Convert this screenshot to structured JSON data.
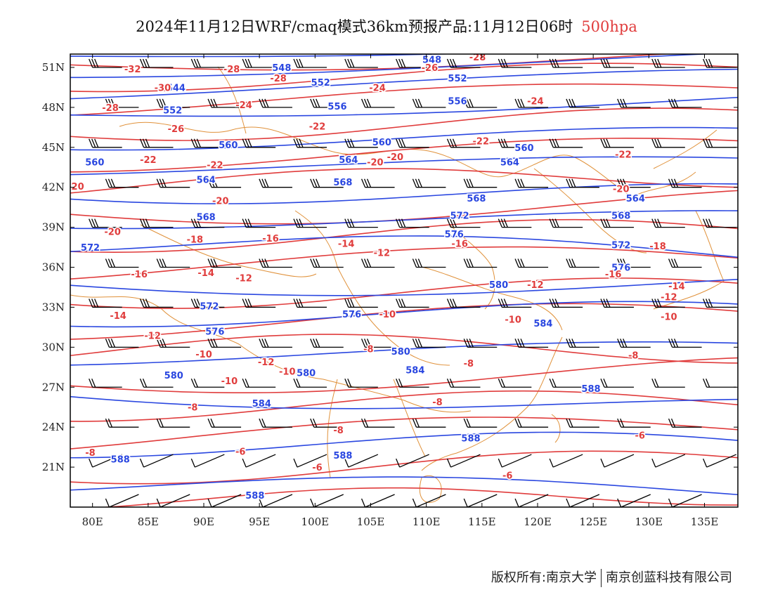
{
  "title": {
    "main": "2024年11月12日WRF/cmaq模式36km预报产品:11月12日06时",
    "level": "500hpa"
  },
  "colors": {
    "height_contour": "#2a47e0",
    "temperature_contour": "#e03c3c",
    "borders": "#e0913a",
    "wind_barb": "#000000"
  },
  "map": {
    "lon_range": [
      78,
      138
    ],
    "lat_range": [
      18,
      52
    ],
    "lat_ticks": [
      "51N",
      "48N",
      "45N",
      "42N",
      "39N",
      "36N",
      "33N",
      "30N",
      "27N",
      "24N",
      "21N"
    ],
    "lon_ticks": [
      "80E",
      "85E",
      "90E",
      "95E",
      "100E",
      "105E",
      "110E",
      "115E",
      "120E",
      "125E",
      "130E",
      "135E"
    ]
  },
  "height_labels": [
    {
      "text": "548",
      "lon": 110.5,
      "lat": 51.6
    },
    {
      "text": "544",
      "lon": 87.5,
      "lat": 49.5
    },
    {
      "text": "548",
      "lon": 97.0,
      "lat": 51.0
    },
    {
      "text": "552",
      "lon": 100.5,
      "lat": 49.9
    },
    {
      "text": "552",
      "lon": 112.8,
      "lat": 50.2
    },
    {
      "text": "552",
      "lon": 87.2,
      "lat": 47.8
    },
    {
      "text": "556",
      "lon": 102.0,
      "lat": 48.1
    },
    {
      "text": "556",
      "lon": 112.8,
      "lat": 48.5
    },
    {
      "text": "560",
      "lon": 80.2,
      "lat": 43.9
    },
    {
      "text": "560",
      "lon": 92.2,
      "lat": 45.2
    },
    {
      "text": "560",
      "lon": 106.0,
      "lat": 45.4
    },
    {
      "text": "560",
      "lon": 118.8,
      "lat": 45.0
    },
    {
      "text": "564",
      "lon": 90.2,
      "lat": 42.6
    },
    {
      "text": "564",
      "lon": 103.0,
      "lat": 44.1
    },
    {
      "text": "564",
      "lon": 117.5,
      "lat": 43.9
    },
    {
      "text": "568",
      "lon": 102.5,
      "lat": 42.4
    },
    {
      "text": "568",
      "lon": 114.5,
      "lat": 41.2
    },
    {
      "text": "564",
      "lon": 128.8,
      "lat": 41.2
    },
    {
      "text": "568",
      "lon": 90.2,
      "lat": 39.8
    },
    {
      "text": "568",
      "lon": 127.5,
      "lat": 39.9
    },
    {
      "text": "572",
      "lon": 113.0,
      "lat": 39.9
    },
    {
      "text": "576",
      "lon": 112.5,
      "lat": 38.5
    },
    {
      "text": "572",
      "lon": 79.8,
      "lat": 37.5
    },
    {
      "text": "572",
      "lon": 127.5,
      "lat": 37.7
    },
    {
      "text": "576",
      "lon": 127.5,
      "lat": 36.0
    },
    {
      "text": "572",
      "lon": 90.5,
      "lat": 33.1
    },
    {
      "text": "576",
      "lon": 103.3,
      "lat": 32.5
    },
    {
      "text": "580",
      "lon": 116.5,
      "lat": 34.7
    },
    {
      "text": "576",
      "lon": 91.0,
      "lat": 31.2
    },
    {
      "text": "584",
      "lon": 120.5,
      "lat": 31.8
    },
    {
      "text": "580",
      "lon": 107.7,
      "lat": 29.7
    },
    {
      "text": "580",
      "lon": 87.3,
      "lat": 27.9
    },
    {
      "text": "580",
      "lon": 99.2,
      "lat": 28.1
    },
    {
      "text": "584",
      "lon": 109.0,
      "lat": 28.3
    },
    {
      "text": "588",
      "lon": 124.8,
      "lat": 26.9
    },
    {
      "text": "584",
      "lon": 95.2,
      "lat": 25.8
    },
    {
      "text": "588",
      "lon": 114.0,
      "lat": 23.2
    },
    {
      "text": "588",
      "lon": 82.5,
      "lat": 21.6
    },
    {
      "text": "588",
      "lon": 102.5,
      "lat": 21.9
    },
    {
      "text": "588",
      "lon": 94.6,
      "lat": 18.9
    }
  ],
  "temp_labels": [
    {
      "text": "-28",
      "lon": 114.6,
      "lat": 51.8
    },
    {
      "text": "-32",
      "lon": 83.6,
      "lat": 50.9
    },
    {
      "text": "-28",
      "lon": 92.5,
      "lat": 50.9
    },
    {
      "text": "-28",
      "lon": 96.7,
      "lat": 50.2
    },
    {
      "text": "-26",
      "lon": 110.3,
      "lat": 51.0
    },
    {
      "text": "-30",
      "lon": 86.3,
      "lat": 49.5
    },
    {
      "text": "-24",
      "lon": 105.6,
      "lat": 49.5
    },
    {
      "text": "-28",
      "lon": 81.6,
      "lat": 48.0
    },
    {
      "text": "-24",
      "lon": 93.6,
      "lat": 48.2
    },
    {
      "text": "-24",
      "lon": 119.8,
      "lat": 48.5
    },
    {
      "text": "-26",
      "lon": 87.5,
      "lat": 46.4
    },
    {
      "text": "-22",
      "lon": 100.2,
      "lat": 46.6
    },
    {
      "text": "-22",
      "lon": 114.9,
      "lat": 45.5
    },
    {
      "text": "-22",
      "lon": 85.0,
      "lat": 44.1
    },
    {
      "text": "-22",
      "lon": 91.0,
      "lat": 43.7
    },
    {
      "text": "-20",
      "lon": 107.2,
      "lat": 44.3
    },
    {
      "text": "-22",
      "lon": 127.7,
      "lat": 44.5
    },
    {
      "text": "-20",
      "lon": 105.4,
      "lat": 43.9
    },
    {
      "text": "-20",
      "lon": 127.5,
      "lat": 41.9
    },
    {
      "text": "-20",
      "lon": 78.5,
      "lat": 42.1
    },
    {
      "text": "-20",
      "lon": 91.5,
      "lat": 41.0
    },
    {
      "text": "-20",
      "lon": 81.8,
      "lat": 38.7
    },
    {
      "text": "-18",
      "lon": 89.2,
      "lat": 38.1
    },
    {
      "text": "-16",
      "lon": 96.0,
      "lat": 38.2
    },
    {
      "text": "-14",
      "lon": 102.8,
      "lat": 37.8
    },
    {
      "text": "-12",
      "lon": 106.0,
      "lat": 37.1
    },
    {
      "text": "-16",
      "lon": 113.0,
      "lat": 37.8
    },
    {
      "text": "-18",
      "lon": 130.8,
      "lat": 37.6
    },
    {
      "text": "-16",
      "lon": 84.2,
      "lat": 35.5
    },
    {
      "text": "-14",
      "lon": 90.2,
      "lat": 35.6
    },
    {
      "text": "-12",
      "lon": 93.6,
      "lat": 35.2
    },
    {
      "text": "-16",
      "lon": 126.8,
      "lat": 35.5
    },
    {
      "text": "-12",
      "lon": 119.8,
      "lat": 34.7
    },
    {
      "text": "-14",
      "lon": 132.5,
      "lat": 34.6
    },
    {
      "text": "-12",
      "lon": 131.8,
      "lat": 33.8
    },
    {
      "text": "-14",
      "lon": 82.3,
      "lat": 32.4
    },
    {
      "text": "-10",
      "lon": 106.5,
      "lat": 32.5
    },
    {
      "text": "-10",
      "lon": 117.8,
      "lat": 32.1
    },
    {
      "text": "-10",
      "lon": 131.8,
      "lat": 32.3
    },
    {
      "text": "-12",
      "lon": 85.4,
      "lat": 30.9
    },
    {
      "text": "-10",
      "lon": 90.0,
      "lat": 29.5
    },
    {
      "text": "-8",
      "lon": 104.8,
      "lat": 29.9
    },
    {
      "text": "-8",
      "lon": 128.6,
      "lat": 29.4
    },
    {
      "text": "-12",
      "lon": 95.6,
      "lat": 28.9
    },
    {
      "text": "-8",
      "lon": 113.8,
      "lat": 28.8
    },
    {
      "text": "-10",
      "lon": 97.5,
      "lat": 28.2
    },
    {
      "text": "-10",
      "lon": 92.3,
      "lat": 27.5
    },
    {
      "text": "-8",
      "lon": 111.0,
      "lat": 25.9
    },
    {
      "text": "-8",
      "lon": 89.0,
      "lat": 25.5
    },
    {
      "text": "-8",
      "lon": 102.1,
      "lat": 23.8
    },
    {
      "text": "-8",
      "lon": 79.8,
      "lat": 22.1
    },
    {
      "text": "-6",
      "lon": 93.3,
      "lat": 22.2
    },
    {
      "text": "-6",
      "lon": 129.2,
      "lat": 23.4
    },
    {
      "text": "-6",
      "lon": 100.2,
      "lat": 21.0
    },
    {
      "text": "-6",
      "lon": 117.3,
      "lat": 20.4
    }
  ],
  "footer": {
    "left": "版权所有:南京大学",
    "right": "南京创蓝科技有限公司"
  }
}
